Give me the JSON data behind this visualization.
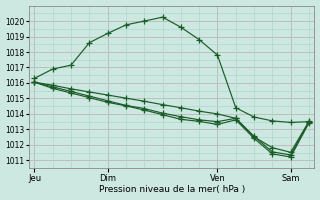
{
  "background_color": "#cce8e0",
  "grid_color_minor": "#a8d4cc",
  "grid_color_major": "#e0b8b8",
  "line_color": "#1a5c28",
  "xlabel": "Pression niveau de la mer( hPa )",
  "ylim": [
    1010.5,
    1021.0
  ],
  "yticks": [
    1011,
    1012,
    1013,
    1014,
    1015,
    1016,
    1017,
    1018,
    1019,
    1020
  ],
  "xtick_labels": [
    "Jeu",
    "Dim",
    "Ven",
    "Sam"
  ],
  "series1": [
    1016.3,
    1016.9,
    1017.15,
    1018.6,
    1019.2,
    1019.75,
    1020.0,
    1020.25,
    1019.6,
    1018.8,
    1017.8,
    1014.4,
    1013.8,
    1013.55,
    1013.45,
    1013.5
  ],
  "series2": [
    1016.05,
    1015.85,
    1015.62,
    1015.42,
    1015.22,
    1015.02,
    1014.82,
    1014.6,
    1014.4,
    1014.18,
    1014.0,
    1013.72,
    1012.55,
    1011.55,
    1011.35,
    1013.5
  ],
  "series3": [
    1016.05,
    1015.75,
    1015.45,
    1015.15,
    1014.85,
    1014.55,
    1014.35,
    1014.05,
    1013.82,
    1013.62,
    1013.5,
    1013.72,
    1012.52,
    1011.82,
    1011.52,
    1013.52
  ],
  "series4": [
    1016.05,
    1015.65,
    1015.35,
    1015.05,
    1014.75,
    1014.52,
    1014.25,
    1013.95,
    1013.65,
    1013.52,
    1013.32,
    1013.62,
    1012.42,
    1011.42,
    1011.22,
    1013.42
  ],
  "n": 16,
  "day_tick_indices": [
    0,
    4,
    10,
    14
  ],
  "figsize": [
    3.2,
    2.0
  ],
  "dpi": 100
}
